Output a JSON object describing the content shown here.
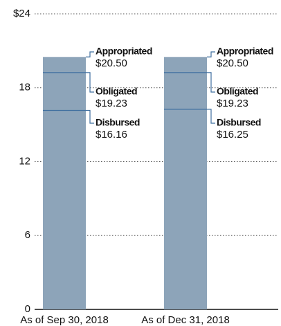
{
  "chart_data": {
    "type": "bar",
    "categories": [
      "As of Sep 30, 2018",
      "As of Dec 31, 2018"
    ],
    "series": [
      {
        "name": "Appropriated",
        "color": "#8da4b9",
        "values": [
          20.5,
          20.5
        ],
        "value_labels": [
          "$20.50",
          "$20.50"
        ]
      },
      {
        "name": "Obligated",
        "color": "#3f6f9f",
        "values": [
          19.23,
          19.23
        ],
        "value_labels": [
          "$19.23",
          "$19.23"
        ]
      },
      {
        "name": "Disbursed",
        "color": "#3f6f9f",
        "values": [
          16.16,
          16.25
        ],
        "value_labels": [
          "$16.16",
          "$16.25"
        ]
      }
    ],
    "ylim": [
      0,
      24
    ],
    "yticks": [
      0,
      6,
      12,
      18,
      {
        "value": 24,
        "label": "$24"
      }
    ],
    "grid": true
  }
}
